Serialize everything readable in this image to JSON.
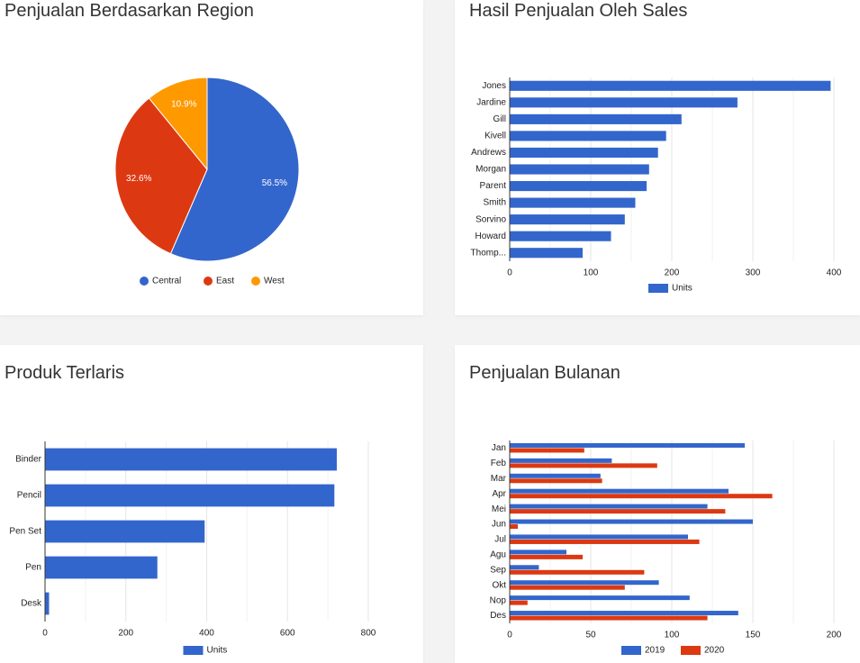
{
  "colors": {
    "blue": "#3366cc",
    "red": "#dc3912",
    "orange": "#ff9900",
    "grid": "#e6e6e6",
    "axis": "#333333",
    "text": "#222222"
  },
  "cards": {
    "region": {
      "title": "Penjualan Berdasarkan Region"
    },
    "sales": {
      "title": "Hasil Penjualan Oleh Sales"
    },
    "produk": {
      "title": "Produk Terlaris"
    },
    "bulanan": {
      "title": "Penjualan Bulanan"
    }
  },
  "chart_data": [
    {
      "id": "region",
      "type": "pie",
      "title": "Penjualan Berdasarkan Region",
      "slices": [
        {
          "label": "Central",
          "value": 56.5,
          "display": "56.5%",
          "color": "#3366cc"
        },
        {
          "label": "East",
          "value": 32.6,
          "display": "32.6%",
          "color": "#dc3912"
        },
        {
          "label": "West",
          "value": 10.9,
          "display": "10.9%",
          "color": "#ff9900"
        }
      ],
      "legend_position": "bottom"
    },
    {
      "id": "sales",
      "type": "bar",
      "orientation": "horizontal",
      "title": "Hasil Penjualan Oleh Sales",
      "categories": [
        "Jones",
        "Jardine",
        "Gill",
        "Kivell",
        "Andrews",
        "Morgan",
        "Parent",
        "Smith",
        "Sorvino",
        "Howard",
        "Thomp..."
      ],
      "series": [
        {
          "name": "Units",
          "color": "#3366cc",
          "values": [
            396,
            281,
            212,
            193,
            183,
            172,
            169,
            155,
            142,
            125,
            90
          ]
        }
      ],
      "xlim": [
        0,
        400
      ],
      "ticks": [
        "0",
        "100",
        "200",
        "300",
        "400"
      ],
      "grid": true,
      "legend_position": "bottom"
    },
    {
      "id": "produk",
      "type": "bar",
      "orientation": "horizontal",
      "title": "Produk Terlaris",
      "categories": [
        "Binder",
        "Pencil",
        "Pen Set",
        "Pen",
        "Desk"
      ],
      "series": [
        {
          "name": "Units",
          "color": "#3366cc",
          "values": [
            722,
            716,
            395,
            278,
            10
          ]
        }
      ],
      "xlim": [
        0,
        800
      ],
      "ticks": [
        "0",
        "200",
        "400",
        "600",
        "800"
      ],
      "grid": true,
      "legend_position": "bottom"
    },
    {
      "id": "bulanan",
      "type": "bar",
      "orientation": "horizontal",
      "title": "Penjualan Bulanan",
      "categories": [
        "Jan",
        "Feb",
        "Mar",
        "Apr",
        "Mei",
        "Jun",
        "Jul",
        "Agu",
        "Sep",
        "Okt",
        "Nop",
        "Des"
      ],
      "series": [
        {
          "name": "2019",
          "color": "#3366cc",
          "values": [
            145,
            63,
            56,
            135,
            122,
            150,
            110,
            35,
            18,
            92,
            111,
            141
          ]
        },
        {
          "name": "2020",
          "color": "#dc3912",
          "values": [
            46,
            91,
            57,
            162,
            133,
            5,
            117,
            45,
            83,
            71,
            11,
            122
          ]
        }
      ],
      "xlim": [
        0,
        200
      ],
      "ticks": [
        "0",
        "50",
        "100",
        "150",
        "200"
      ],
      "grid": true,
      "legend_position": "bottom"
    }
  ]
}
